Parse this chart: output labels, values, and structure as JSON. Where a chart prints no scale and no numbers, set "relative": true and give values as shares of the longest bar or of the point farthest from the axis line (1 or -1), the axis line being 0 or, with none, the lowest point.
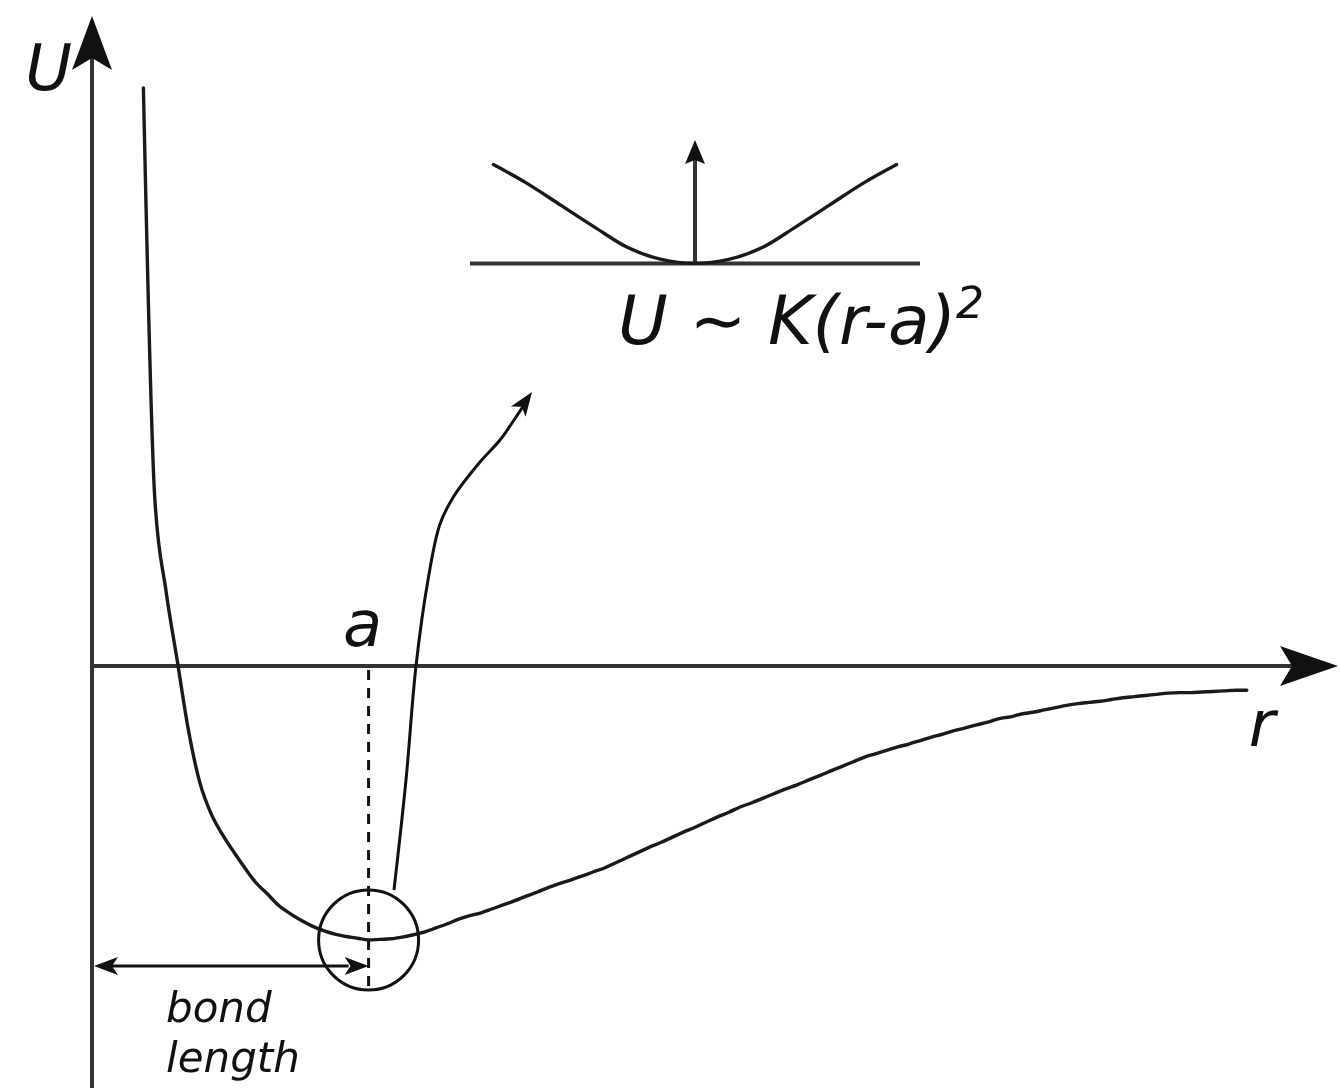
{
  "chart_data": [
    {
      "type": "line",
      "relative": true,
      "xlabel": "r",
      "ylabel": "U",
      "color": "#1a1a1a",
      "categories": [
        null,
        null,
        null,
        null,
        null,
        null,
        null,
        null,
        null,
        null,
        null,
        null,
        null,
        null,
        null,
        null,
        null,
        null,
        null,
        null,
        null,
        null,
        null,
        null,
        null,
        null,
        null,
        null,
        null,
        null,
        null,
        null,
        null,
        null,
        null,
        null,
        null,
        null,
        null,
        null,
        null,
        null,
        null,
        null,
        null,
        null,
        null,
        null,
        null,
        null,
        null,
        null,
        null,
        null,
        null,
        null,
        null,
        null,
        null,
        null,
        null,
        null,
        null,
        null,
        null,
        null,
        null,
        null,
        null,
        null,
        null,
        null,
        null,
        null,
        null,
        null,
        null,
        null,
        null,
        null,
        null,
        null,
        null,
        null,
        null,
        null,
        null,
        null,
        null,
        null,
        null,
        null,
        null,
        null,
        null,
        null,
        null,
        null,
        null
      ],
      "values": [
        1,
        0.294,
        0.131,
        0.01,
        -0.111,
        -0.201,
        -0.255,
        -0.291,
        -0.321,
        -0.349,
        -0.375,
        -0.394,
        -0.414,
        -0.428,
        -0.44,
        -0.45,
        -0.458,
        -0.464,
        -0.468,
        -0.471,
        -0.474,
        -0.473,
        -0.472,
        -0.469,
        -0.465,
        -0.46,
        -0.453,
        -0.446,
        -0.438,
        -0.432,
        -0.427,
        -0.42,
        -0.413,
        -0.406,
        -0.398,
        -0.391,
        -0.383,
        -0.376,
        -0.37,
        -0.363,
        -0.356,
        -0.349,
        -0.34,
        -0.331,
        -0.322,
        -0.313,
        -0.305,
        -0.296,
        -0.287,
        -0.279,
        -0.27,
        -0.261,
        -0.253,
        -0.244,
        -0.237,
        -0.229,
        -0.221,
        -0.213,
        -0.206,
        -0.198,
        -0.19,
        -0.182,
        -0.174,
        -0.166,
        -0.158,
        -0.152,
        -0.146,
        -0.14,
        -0.135,
        -0.129,
        -0.123,
        -0.118,
        -0.112,
        -0.107,
        -0.102,
        -0.097,
        -0.091,
        -0.088,
        -0.083,
        -0.08,
        -0.076,
        -0.072,
        -0.068,
        -0.065,
        -0.063,
        -0.061,
        -0.058,
        -0.055,
        -0.053,
        -0.051,
        -0.049,
        -0.047,
        -0.046,
        -0.046,
        -0.045,
        -0.044,
        -0.043,
        -0.042,
        -0.042
      ],
      "annotations": [
        "a",
        "bond length"
      ]
    },
    {
      "type": "line",
      "relative": true,
      "color": "#1a1a1a",
      "categories": [
        null,
        null,
        null,
        null,
        null,
        null,
        null,
        null,
        null,
        null,
        null,
        null,
        null
      ],
      "values": [
        1,
        0.81,
        0.59,
        0.37,
        0.16,
        0.04,
        0,
        0.04,
        0.16,
        0.37,
        0.59,
        0.81,
        1
      ],
      "annotations": [
        "U ~ K(r-a)$^{2}$"
      ]
    }
  ]
}
